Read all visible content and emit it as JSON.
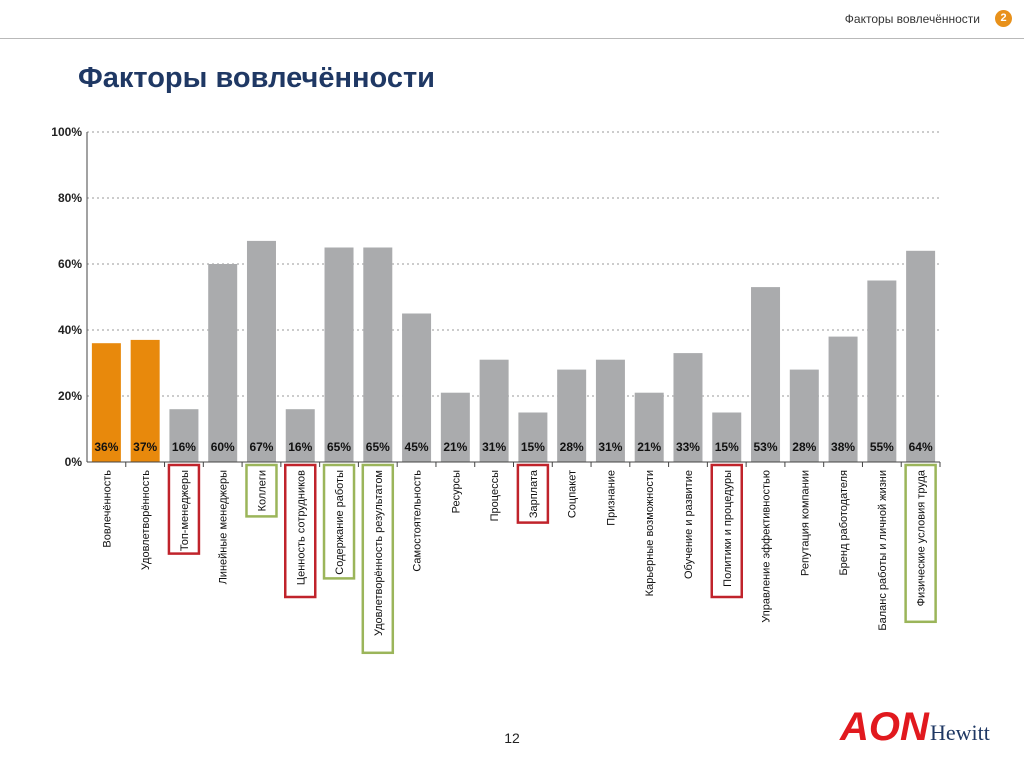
{
  "header": {
    "section_label": "Факторы вовлечённости",
    "section_number": "2"
  },
  "title": "Факторы вовлечённости",
  "slide_number": "12",
  "logo": {
    "brand": "AON",
    "sub": "Hewitt",
    "color": "#e1191e",
    "sub_color": "#1f3864"
  },
  "colors": {
    "highlight": "#e8890c",
    "default": "#aaabad",
    "red_frame": "#c0232b",
    "green_frame": "#9bb55a",
    "grid": "#999999"
  },
  "chart_data": {
    "type": "bar",
    "ylim": [
      0,
      100
    ],
    "yticks": [
      "0%",
      "20%",
      "40%",
      "60%",
      "80%",
      "100%"
    ],
    "grid": true,
    "categories": [
      "Вовлечённость",
      "Удовлетворённость",
      "Топ-менеджеры",
      "Линейные менеджеры",
      "Коллеги",
      "Ценность сотрудников",
      "Содержание работы",
      "Удовлетворённость результатом",
      "Самостоятельность",
      "Ресурсы",
      "Процессы",
      "Зарплата",
      "Соцпакет",
      "Признание",
      "Карьерные возможности",
      "Обучение и развитие",
      "Политики и процедуры",
      "Управление эффективностью",
      "Репутация компании",
      "Бренд работодателя",
      "Баланс работы и личной жизни",
      "Физические условия труда"
    ],
    "values": [
      36,
      37,
      16,
      60,
      67,
      16,
      65,
      65,
      45,
      21,
      31,
      15,
      28,
      31,
      21,
      33,
      15,
      53,
      28,
      38,
      55,
      64
    ],
    "value_labels": [
      "36%",
      "37%",
      "16%",
      "60%",
      "67%",
      "16%",
      "65%",
      "65%",
      "45%",
      "21%",
      "31%",
      "15%",
      "28%",
      "31%",
      "21%",
      "33%",
      "15%",
      "53%",
      "28%",
      "38%",
      "55%",
      "64%"
    ],
    "highlight": [
      "orange",
      "orange",
      "",
      "",
      "",
      "",
      "",
      "",
      "",
      "",
      "",
      "",
      "",
      "",
      "",
      "",
      "",
      "",
      "",
      "",
      "",
      ""
    ],
    "frames": [
      "",
      "",
      "red",
      "",
      "green",
      "red",
      "green",
      "green",
      "",
      "",
      "",
      "red",
      "",
      "",
      "",
      "",
      "red",
      "",
      "",
      "",
      "",
      "green"
    ]
  }
}
